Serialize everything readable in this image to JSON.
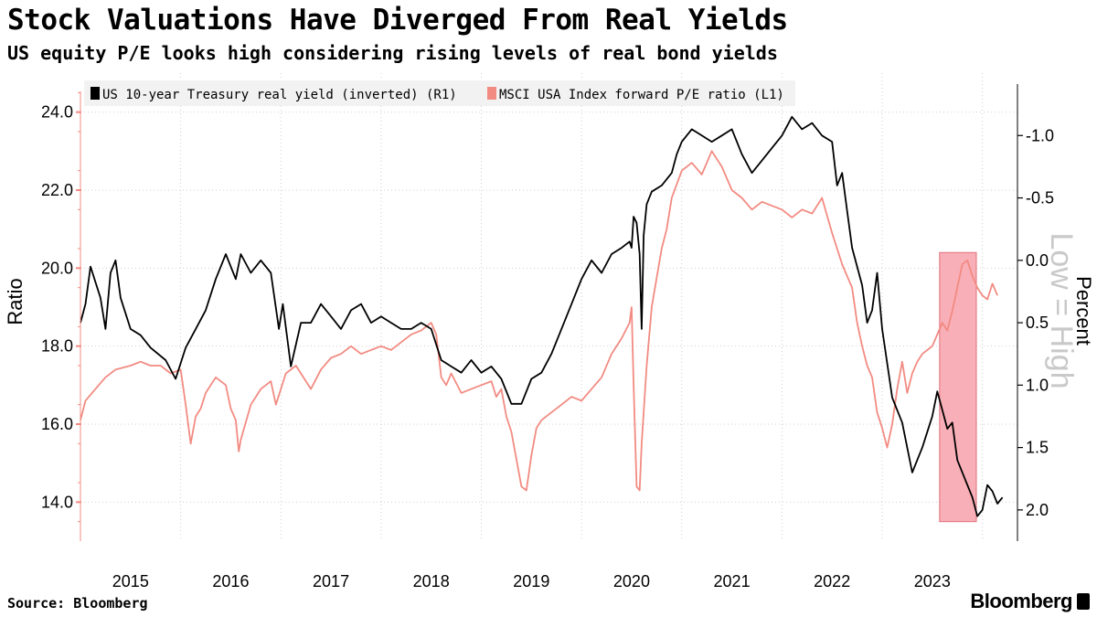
{
  "title": "Stock Valuations Have Diverged From Real Yields",
  "subtitle": "US equity P/E looks high considering rising levels of real bond yields",
  "source": "Source: Bloomberg",
  "brand": "Bloomberg",
  "chart_data": {
    "type": "line",
    "x_tick_labels": [
      "2015",
      "2016",
      "2017",
      "2018",
      "2019",
      "2020",
      "2021",
      "2022",
      "2023"
    ],
    "left_axis": {
      "label": "Ratio",
      "range": [
        13.0,
        25.0
      ],
      "ticks": [
        "14.0",
        "16.0",
        "18.0",
        "20.0",
        "22.0",
        "24.0"
      ]
    },
    "right_axis": {
      "label": "Percent",
      "inverted": true,
      "range": [
        2.25,
        -1.5
      ],
      "ticks": [
        "-1.0",
        "-0.5",
        "0.0",
        "0.5",
        "1.0",
        "1.5",
        "2.0"
      ]
    },
    "annotation": "Low = High",
    "highlight": {
      "x_range": [
        2023.0,
        2023.33
      ],
      "color": "#f7a1aa"
    },
    "grid": true,
    "legend_position": "top-left",
    "colors": {
      "yield": "#000000",
      "pe": "#f28b82",
      "left_ticks": "#f28b82"
    },
    "series": [
      {
        "name": "US 10-year Treasury real yield (inverted) (R1)",
        "axis": "right",
        "points": [
          [
            2014.5,
            0.5
          ],
          [
            2014.55,
            0.35
          ],
          [
            2014.6,
            0.05
          ],
          [
            2014.7,
            0.3
          ],
          [
            2014.75,
            0.55
          ],
          [
            2014.8,
            0.1
          ],
          [
            2014.85,
            0.0
          ],
          [
            2014.9,
            0.3
          ],
          [
            2015.0,
            0.55
          ],
          [
            2015.1,
            0.6
          ],
          [
            2015.2,
            0.7
          ],
          [
            2015.35,
            0.8
          ],
          [
            2015.45,
            0.95
          ],
          [
            2015.55,
            0.7
          ],
          [
            2015.65,
            0.55
          ],
          [
            2015.75,
            0.4
          ],
          [
            2015.85,
            0.15
          ],
          [
            2015.95,
            -0.05
          ],
          [
            2016.05,
            0.15
          ],
          [
            2016.1,
            -0.05
          ],
          [
            2016.2,
            0.1
          ],
          [
            2016.3,
            0.0
          ],
          [
            2016.4,
            0.1
          ],
          [
            2016.48,
            0.55
          ],
          [
            2016.52,
            0.35
          ],
          [
            2016.6,
            0.85
          ],
          [
            2016.7,
            0.5
          ],
          [
            2016.8,
            0.5
          ],
          [
            2016.9,
            0.35
          ],
          [
            2017.0,
            0.45
          ],
          [
            2017.1,
            0.55
          ],
          [
            2017.2,
            0.4
          ],
          [
            2017.3,
            0.35
          ],
          [
            2017.4,
            0.5
          ],
          [
            2017.5,
            0.45
          ],
          [
            2017.6,
            0.5
          ],
          [
            2017.7,
            0.55
          ],
          [
            2017.8,
            0.55
          ],
          [
            2017.9,
            0.5
          ],
          [
            2018.0,
            0.55
          ],
          [
            2018.1,
            0.8
          ],
          [
            2018.2,
            0.85
          ],
          [
            2018.3,
            0.9
          ],
          [
            2018.4,
            0.8
          ],
          [
            2018.5,
            0.9
          ],
          [
            2018.6,
            0.85
          ],
          [
            2018.7,
            0.95
          ],
          [
            2018.8,
            1.15
          ],
          [
            2018.9,
            1.15
          ],
          [
            2019.0,
            0.95
          ],
          [
            2019.1,
            0.9
          ],
          [
            2019.2,
            0.75
          ],
          [
            2019.3,
            0.55
          ],
          [
            2019.4,
            0.35
          ],
          [
            2019.5,
            0.15
          ],
          [
            2019.6,
            0.0
          ],
          [
            2019.7,
            0.1
          ],
          [
            2019.8,
            -0.05
          ],
          [
            2019.9,
            -0.1
          ],
          [
            2019.98,
            -0.15
          ],
          [
            2020.0,
            -0.1
          ],
          [
            2020.02,
            -0.35
          ],
          [
            2020.05,
            -0.3
          ],
          [
            2020.08,
            -0.05
          ],
          [
            2020.1,
            0.55
          ],
          [
            2020.12,
            -0.2
          ],
          [
            2020.15,
            -0.45
          ],
          [
            2020.2,
            -0.55
          ],
          [
            2020.3,
            -0.6
          ],
          [
            2020.4,
            -0.7
          ],
          [
            2020.45,
            -0.85
          ],
          [
            2020.5,
            -0.95
          ],
          [
            2020.6,
            -1.05
          ],
          [
            2020.7,
            -1.0
          ],
          [
            2020.8,
            -0.95
          ],
          [
            2020.9,
            -1.0
          ],
          [
            2021.0,
            -1.05
          ],
          [
            2021.1,
            -0.85
          ],
          [
            2021.2,
            -0.7
          ],
          [
            2021.3,
            -0.8
          ],
          [
            2021.4,
            -0.9
          ],
          [
            2021.5,
            -1.0
          ],
          [
            2021.6,
            -1.15
          ],
          [
            2021.7,
            -1.05
          ],
          [
            2021.8,
            -1.1
          ],
          [
            2021.9,
            -1.0
          ],
          [
            2022.0,
            -0.95
          ],
          [
            2022.05,
            -0.6
          ],
          [
            2022.1,
            -0.7
          ],
          [
            2022.15,
            -0.4
          ],
          [
            2022.2,
            -0.1
          ],
          [
            2022.3,
            0.2
          ],
          [
            2022.35,
            0.5
          ],
          [
            2022.4,
            0.4
          ],
          [
            2022.45,
            0.1
          ],
          [
            2022.5,
            0.55
          ],
          [
            2022.6,
            1.1
          ],
          [
            2022.7,
            1.3
          ],
          [
            2022.8,
            1.7
          ],
          [
            2022.9,
            1.5
          ],
          [
            2023.0,
            1.25
          ],
          [
            2023.05,
            1.05
          ],
          [
            2023.1,
            1.2
          ],
          [
            2023.15,
            1.35
          ],
          [
            2023.2,
            1.3
          ],
          [
            2023.25,
            1.6
          ],
          [
            2023.3,
            1.7
          ],
          [
            2023.35,
            1.8
          ],
          [
            2023.4,
            1.9
          ],
          [
            2023.45,
            2.05
          ],
          [
            2023.5,
            2.0
          ],
          [
            2023.55,
            1.8
          ],
          [
            2023.6,
            1.85
          ],
          [
            2023.65,
            1.95
          ],
          [
            2023.7,
            1.9
          ]
        ]
      },
      {
        "name": "MSCI USA Index forward P/E ratio (L1)",
        "axis": "left",
        "points": [
          [
            2014.5,
            16.1
          ],
          [
            2014.55,
            16.6
          ],
          [
            2014.65,
            16.9
          ],
          [
            2014.75,
            17.2
          ],
          [
            2014.85,
            17.4
          ],
          [
            2015.0,
            17.5
          ],
          [
            2015.1,
            17.6
          ],
          [
            2015.2,
            17.5
          ],
          [
            2015.3,
            17.5
          ],
          [
            2015.4,
            17.3
          ],
          [
            2015.5,
            17.4
          ],
          [
            2015.55,
            16.5
          ],
          [
            2015.6,
            15.5
          ],
          [
            2015.65,
            16.2
          ],
          [
            2015.7,
            16.4
          ],
          [
            2015.75,
            16.8
          ],
          [
            2015.85,
            17.2
          ],
          [
            2015.95,
            17.0
          ],
          [
            2016.0,
            16.4
          ],
          [
            2016.05,
            16.1
          ],
          [
            2016.08,
            15.3
          ],
          [
            2016.1,
            15.6
          ],
          [
            2016.2,
            16.5
          ],
          [
            2016.3,
            16.9
          ],
          [
            2016.4,
            17.1
          ],
          [
            2016.45,
            16.5
          ],
          [
            2016.55,
            17.3
          ],
          [
            2016.65,
            17.5
          ],
          [
            2016.8,
            16.9
          ],
          [
            2016.9,
            17.4
          ],
          [
            2017.0,
            17.7
          ],
          [
            2017.1,
            17.8
          ],
          [
            2017.2,
            18.0
          ],
          [
            2017.3,
            17.8
          ],
          [
            2017.4,
            17.9
          ],
          [
            2017.5,
            18.0
          ],
          [
            2017.6,
            17.9
          ],
          [
            2017.7,
            18.1
          ],
          [
            2017.8,
            18.3
          ],
          [
            2017.9,
            18.4
          ],
          [
            2018.0,
            18.6
          ],
          [
            2018.05,
            18.3
          ],
          [
            2018.1,
            17.2
          ],
          [
            2018.15,
            17.0
          ],
          [
            2018.2,
            17.3
          ],
          [
            2018.3,
            16.8
          ],
          [
            2018.4,
            16.9
          ],
          [
            2018.5,
            17.0
          ],
          [
            2018.6,
            17.1
          ],
          [
            2018.65,
            16.7
          ],
          [
            2018.7,
            16.9
          ],
          [
            2018.75,
            16.2
          ],
          [
            2018.8,
            15.8
          ],
          [
            2018.9,
            14.4
          ],
          [
            2018.95,
            14.3
          ],
          [
            2019.0,
            15.2
          ],
          [
            2019.05,
            15.9
          ],
          [
            2019.1,
            16.1
          ],
          [
            2019.2,
            16.3
          ],
          [
            2019.3,
            16.5
          ],
          [
            2019.4,
            16.7
          ],
          [
            2019.5,
            16.6
          ],
          [
            2019.6,
            16.9
          ],
          [
            2019.7,
            17.2
          ],
          [
            2019.8,
            17.8
          ],
          [
            2019.9,
            18.2
          ],
          [
            2019.98,
            18.6
          ],
          [
            2020.0,
            19.0
          ],
          [
            2020.02,
            17.0
          ],
          [
            2020.05,
            14.4
          ],
          [
            2020.08,
            14.3
          ],
          [
            2020.1,
            15.5
          ],
          [
            2020.15,
            17.5
          ],
          [
            2020.2,
            19.0
          ],
          [
            2020.3,
            20.5
          ],
          [
            2020.35,
            21.0
          ],
          [
            2020.4,
            21.8
          ],
          [
            2020.5,
            22.5
          ],
          [
            2020.6,
            22.7
          ],
          [
            2020.7,
            22.4
          ],
          [
            2020.8,
            23.0
          ],
          [
            2020.9,
            22.6
          ],
          [
            2021.0,
            22.0
          ],
          [
            2021.1,
            21.8
          ],
          [
            2021.2,
            21.5
          ],
          [
            2021.3,
            21.7
          ],
          [
            2021.4,
            21.6
          ],
          [
            2021.5,
            21.5
          ],
          [
            2021.6,
            21.3
          ],
          [
            2021.7,
            21.5
          ],
          [
            2021.8,
            21.4
          ],
          [
            2021.9,
            21.8
          ],
          [
            2022.0,
            20.9
          ],
          [
            2022.05,
            20.5
          ],
          [
            2022.1,
            20.1
          ],
          [
            2022.15,
            19.8
          ],
          [
            2022.2,
            19.5
          ],
          [
            2022.25,
            18.6
          ],
          [
            2022.3,
            18.0
          ],
          [
            2022.35,
            17.5
          ],
          [
            2022.4,
            17.2
          ],
          [
            2022.45,
            16.3
          ],
          [
            2022.5,
            15.9
          ],
          [
            2022.55,
            15.4
          ],
          [
            2022.6,
            16.0
          ],
          [
            2022.65,
            16.9
          ],
          [
            2022.7,
            17.6
          ],
          [
            2022.75,
            16.8
          ],
          [
            2022.8,
            17.3
          ],
          [
            2022.85,
            17.6
          ],
          [
            2022.9,
            17.8
          ],
          [
            2023.0,
            18.0
          ],
          [
            2023.05,
            18.3
          ],
          [
            2023.1,
            18.6
          ],
          [
            2023.15,
            18.4
          ],
          [
            2023.2,
            18.9
          ],
          [
            2023.25,
            19.5
          ],
          [
            2023.3,
            20.1
          ],
          [
            2023.35,
            20.2
          ],
          [
            2023.4,
            19.8
          ],
          [
            2023.45,
            19.5
          ],
          [
            2023.5,
            19.3
          ],
          [
            2023.55,
            19.2
          ],
          [
            2023.6,
            19.6
          ],
          [
            2023.65,
            19.3
          ]
        ]
      }
    ]
  }
}
